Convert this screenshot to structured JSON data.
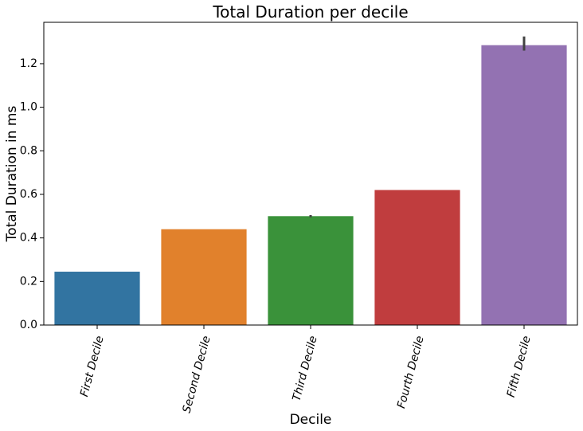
{
  "chart_data": {
    "type": "bar",
    "title": "Total Duration per decile",
    "xlabel": "Decile",
    "ylabel": "Total Duration in ms",
    "categories": [
      "First Decile",
      "Second Decile",
      "Third Decile",
      "Fourth Decile",
      "Fifth Decile"
    ],
    "values": [
      0.245,
      0.44,
      0.5,
      0.62,
      1.285
    ],
    "error_bars": [
      null,
      null,
      [
        0.495,
        0.505
      ],
      null,
      [
        1.26,
        1.325
      ]
    ],
    "colors": [
      "#3274a1",
      "#e1812c",
      "#3a923a",
      "#c03d3e",
      "#9372b2"
    ],
    "ylim": [
      0,
      1.39
    ],
    "yticks": [
      0.0,
      0.2,
      0.4,
      0.6,
      0.8,
      1.0,
      1.2
    ],
    "ytick_labels": [
      "0.0",
      "0.2",
      "0.4",
      "0.6",
      "0.8",
      "1.0",
      "1.2"
    ],
    "grid": false,
    "legend": false
  }
}
